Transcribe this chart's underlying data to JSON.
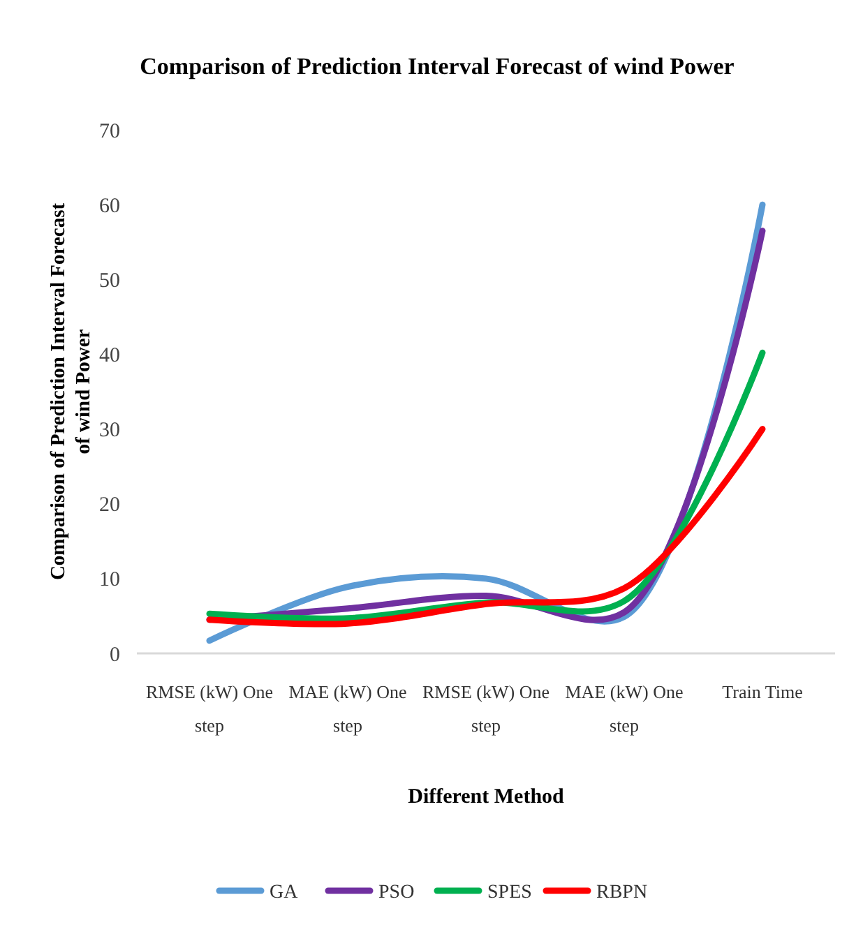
{
  "chart_data": {
    "type": "line",
    "title": "Comparison  of Prediction  Interval Forecast of wind  Power",
    "xlabel": "Different Method",
    "ylabel": "Comparison   of Prediction  Interval  Forecast of wind  Power",
    "categories": [
      "RMSE (kW) One step",
      "MAE (kW) One step",
      "RMSE (kW) One step",
      "MAE (kW) One step",
      "Train Time"
    ],
    "series": [
      {
        "name": "GA",
        "color": "#5b9bd5",
        "values": [
          1.7,
          8.9,
          10,
          4.9,
          60
        ]
      },
      {
        "name": "PSO",
        "color": "#7030a0",
        "values": [
          4.5,
          6,
          7.7,
          5.5,
          56.5
        ]
      },
      {
        "name": "SPES",
        "color": "#00b050",
        "values": [
          5.3,
          4.7,
          6.8,
          7,
          40.2
        ]
      },
      {
        "name": "RBPN",
        "color": "#ff0000",
        "values": [
          4.5,
          4,
          6.6,
          8.7,
          30
        ]
      }
    ],
    "ylim": [
      0,
      70
    ],
    "yticks": [
      0,
      10,
      20,
      30,
      40,
      50,
      60,
      70
    ],
    "grid": false,
    "legend": "bottom",
    "marker": "none",
    "line_style": "solid"
  }
}
